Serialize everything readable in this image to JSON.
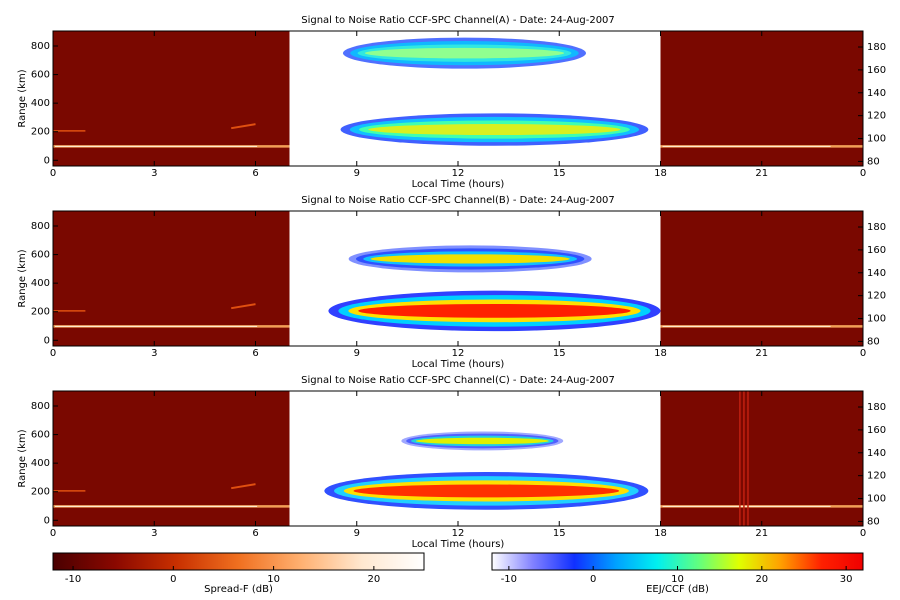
{
  "chart_data": [
    {
      "type": "heatmap",
      "title": "Signal to Noise Ratio CCF-SPC Channel(A) - Date: 24-Aug-2007",
      "x_label": "Local Time (hours)",
      "y_label": "Range (km)",
      "xlim": [
        0,
        24
      ],
      "xticks": [
        0,
        3,
        6,
        9,
        12,
        15,
        18,
        21,
        {
          "value": 24,
          "label": "0"
        }
      ],
      "ylim": [
        -40,
        905
      ],
      "yticks": [
        0,
        200,
        400,
        600,
        800
      ],
      "y2lim": [
        76,
        194
      ],
      "y2ticks": [
        80,
        100,
        120,
        140,
        160,
        180
      ]
    },
    {
      "type": "heatmap",
      "title": "Signal to Noise Ratio CCF-SPC Channel(B) - Date: 24-Aug-2007",
      "x_label": "Local Time (hours)",
      "y_label": "Range (km)",
      "xlim": [
        0,
        24
      ],
      "xticks": [
        0,
        3,
        6,
        9,
        12,
        15,
        18,
        21,
        {
          "value": 24,
          "label": "0"
        }
      ],
      "ylim": [
        -40,
        905
      ],
      "yticks": [
        0,
        200,
        400,
        600,
        800
      ],
      "y2lim": [
        76,
        194
      ],
      "y2ticks": [
        80,
        100,
        120,
        140,
        160,
        180
      ]
    },
    {
      "type": "heatmap",
      "title": "Signal to Noise Ratio CCF-SPC Channel(C) - Date: 24-Aug-2007",
      "x_label": "Local Time (hours)",
      "y_label": "Range (km)",
      "xlim": [
        0,
        24
      ],
      "xticks": [
        0,
        3,
        6,
        9,
        12,
        15,
        18,
        21,
        {
          "value": 24,
          "label": "0"
        }
      ],
      "ylim": [
        -40,
        905
      ],
      "yticks": [
        0,
        200,
        400,
        600,
        800
      ],
      "y2lim": [
        76,
        194
      ],
      "y2ticks": [
        80,
        100,
        120,
        140,
        160,
        180
      ]
    },
    {
      "type": "colorbar",
      "label": "Spread-F (dB)",
      "xlim": [
        -12,
        25
      ],
      "xticks": [
        -10,
        0,
        10,
        20
      ],
      "colors": [
        "#4a0000",
        "#8a0800",
        "#c83000",
        "#f07020",
        "#ffb070",
        "#ffe8d0",
        "#ffffff"
      ]
    },
    {
      "type": "colorbar",
      "label": "EEJ/CCF (dB)",
      "xlim": [
        -12,
        32
      ],
      "xticks": [
        -10,
        0,
        10,
        20,
        30
      ],
      "colors": [
        "#ffffff",
        "#8080ff",
        "#1030ff",
        "#00a0ff",
        "#00f0f0",
        "#60ff80",
        "#e0ff00",
        "#ffa000",
        "#ff2000",
        "#f00000"
      ]
    }
  ]
}
